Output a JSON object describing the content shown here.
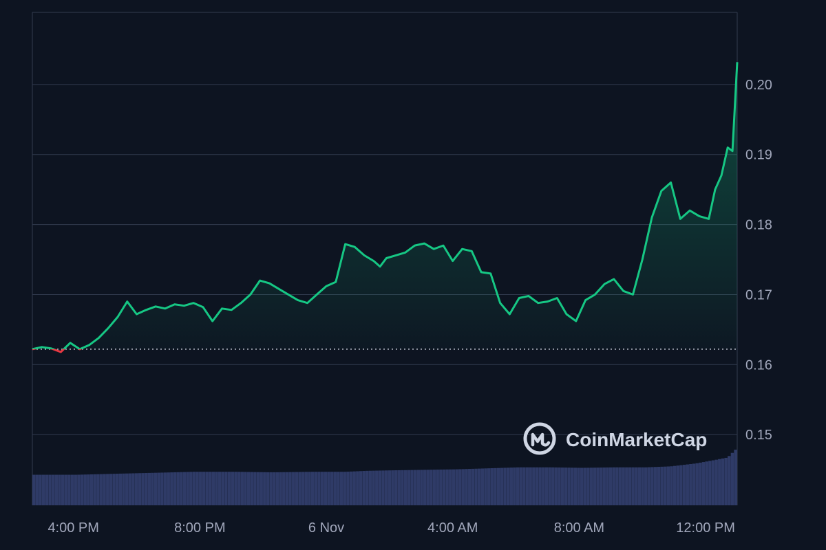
{
  "chart_data": {
    "type": "area",
    "x_tick_labels": [
      "4:00 PM",
      "8:00 PM",
      "6 Nov",
      "4:00 AM",
      "8:00 AM",
      "12:00 PM"
    ],
    "y_tick_labels": [
      "0.15",
      "0.16",
      "0.17",
      "0.18",
      "0.19",
      "0.20"
    ],
    "ylim": [
      0.1399,
      0.2103
    ],
    "x_hours": [
      2.6,
      24.9
    ],
    "x_tick_hours": [
      3.9,
      7.9,
      11.9,
      15.9,
      19.9,
      23.9
    ],
    "reference_price": 0.1622,
    "grid": true,
    "up_color": "#16c784",
    "down_color": "#ea3943",
    "volume_color": "#2f3b67",
    "series": [
      {
        "x": [
          2.6,
          2.9,
          3.2,
          3.5,
          3.8,
          4.1,
          4.4,
          4.7,
          5.0,
          5.3,
          5.6,
          5.9,
          6.2,
          6.5,
          6.8,
          7.1,
          7.4,
          7.7,
          8.0,
          8.3,
          8.6,
          8.9,
          9.2,
          9.5,
          9.8,
          10.1,
          10.4,
          10.7,
          11.0,
          11.3,
          11.6,
          11.9,
          12.2,
          12.5,
          12.8,
          13.1,
          13.4,
          13.6,
          13.8,
          14.1,
          14.4,
          14.7,
          15.0,
          15.3,
          15.6,
          15.9,
          16.2,
          16.5,
          16.8,
          17.1,
          17.4,
          17.7,
          18.0,
          18.3,
          18.6,
          18.9,
          19.2,
          19.5,
          19.8,
          20.1,
          20.4,
          20.7,
          21.0,
          21.3,
          21.6,
          21.9,
          22.2,
          22.5,
          22.8,
          23.1,
          23.4,
          23.7,
          24.0,
          24.2,
          24.4,
          24.6,
          24.75,
          24.9
        ],
        "values": [
          0.1622,
          0.1625,
          0.1623,
          0.1618,
          0.1631,
          0.1622,
          0.1628,
          0.1638,
          0.1652,
          0.1668,
          0.169,
          0.1672,
          0.1678,
          0.1683,
          0.168,
          0.1686,
          0.1684,
          0.1688,
          0.1682,
          0.1662,
          0.168,
          0.1678,
          0.1688,
          0.17,
          0.172,
          0.1716,
          0.1708,
          0.17,
          0.1692,
          0.1688,
          0.17,
          0.1712,
          0.1718,
          0.1772,
          0.1768,
          0.1756,
          0.1748,
          0.174,
          0.1752,
          0.1756,
          0.176,
          0.177,
          0.1773,
          0.1765,
          0.177,
          0.1748,
          0.1765,
          0.1762,
          0.1732,
          0.173,
          0.1688,
          0.1672,
          0.1695,
          0.1698,
          0.1688,
          0.169,
          0.1695,
          0.1672,
          0.1662,
          0.1692,
          0.17,
          0.1715,
          0.1722,
          0.1705,
          0.17,
          0.175,
          0.181,
          0.1848,
          0.186,
          0.1808,
          0.182,
          0.1812,
          0.1808,
          0.185,
          0.187,
          0.191,
          0.1905,
          0.2032
        ]
      }
    ],
    "volume": {
      "x": [
        2.6,
        3.2,
        4.0,
        5.2,
        6.5,
        7.7,
        9.0,
        10.2,
        11.5,
        12.5,
        13.2,
        14.0,
        15.0,
        16.0,
        17.0,
        18.0,
        19.0,
        20.0,
        21.0,
        22.0,
        22.8,
        23.6,
        24.2,
        24.6,
        24.9
      ],
      "share_of_axis": [
        0.062,
        0.062,
        0.062,
        0.064,
        0.066,
        0.068,
        0.068,
        0.067,
        0.068,
        0.068,
        0.07,
        0.071,
        0.072,
        0.073,
        0.075,
        0.077,
        0.077,
        0.076,
        0.077,
        0.077,
        0.079,
        0.085,
        0.092,
        0.097,
        0.116
      ]
    }
  },
  "watermark": {
    "brand_name": "CoinMarketCap",
    "logo_icon": "coinmarketcap-logo-icon"
  }
}
